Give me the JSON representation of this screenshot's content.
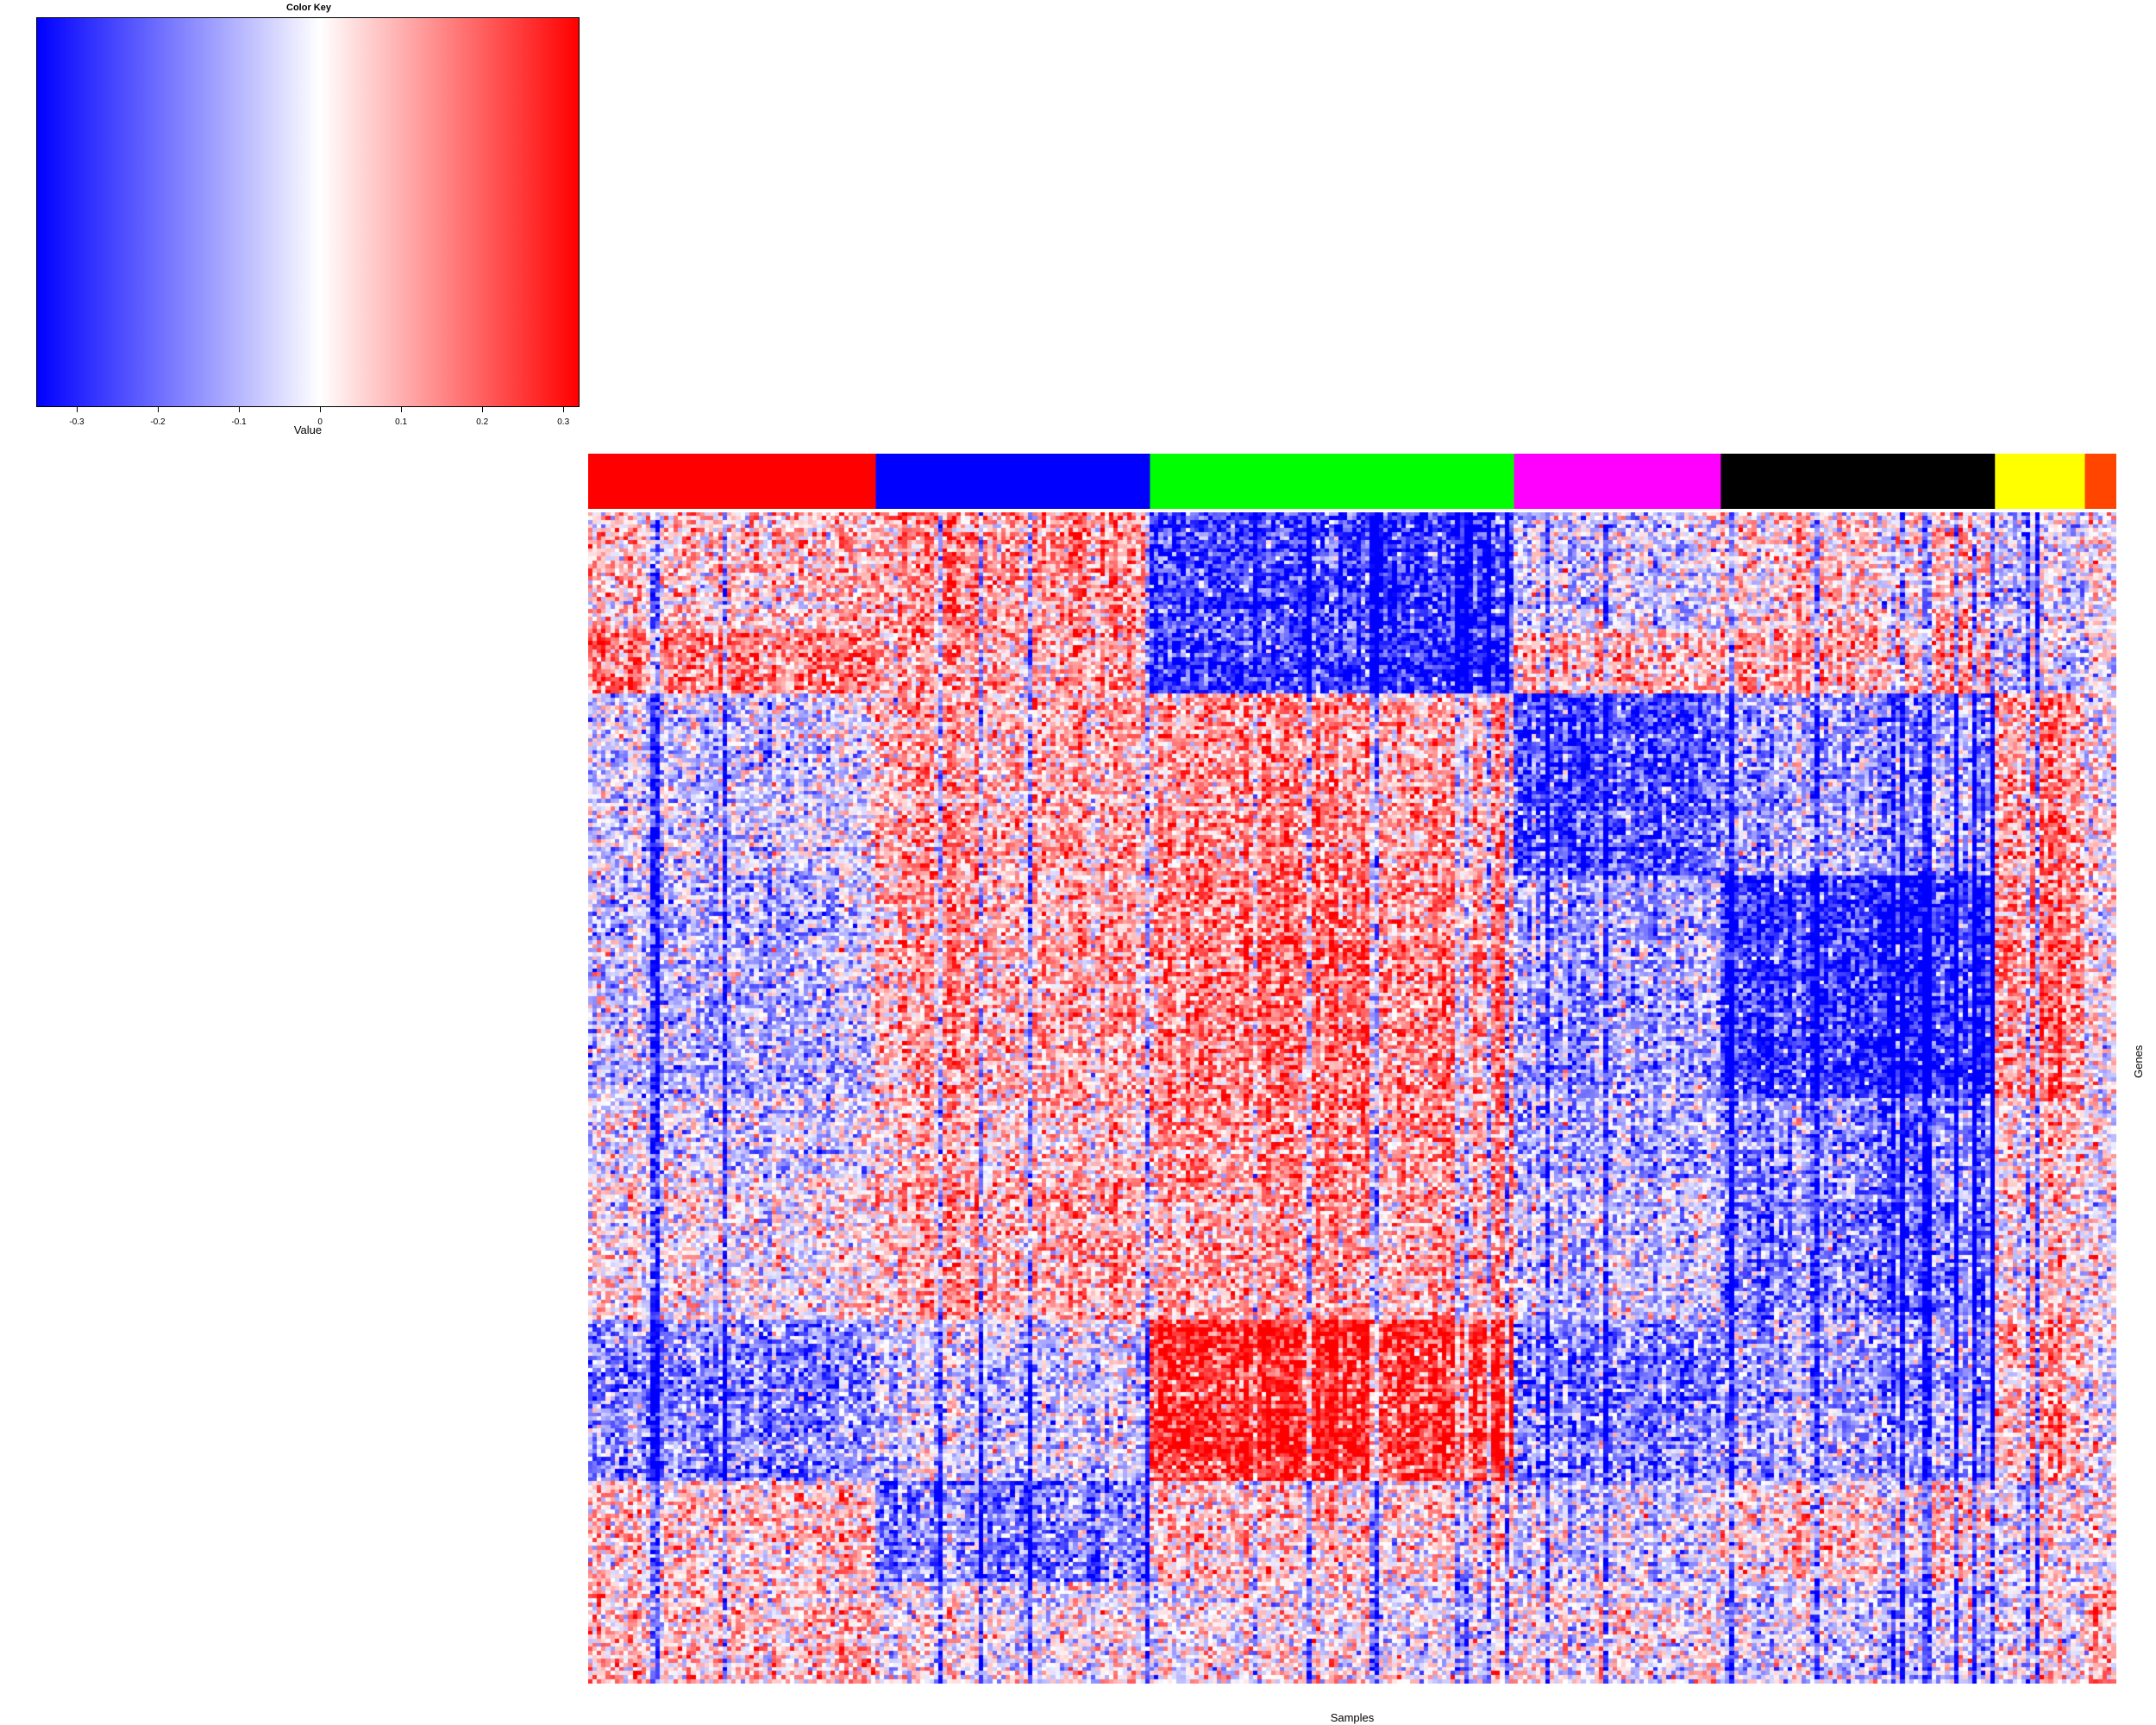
{
  "chart_data": {
    "type": "heatmap",
    "color_key": {
      "title": "Color Key",
      "xlabel": "Value",
      "range": [
        -0.35,
        0.32
      ],
      "ticks": [
        {
          "value": -0.3,
          "label": "-0.3"
        },
        {
          "value": -0.2,
          "label": "-0.2"
        },
        {
          "value": -0.1,
          "label": "-0.1"
        },
        {
          "value": 0,
          "label": "0"
        },
        {
          "value": 0.1,
          "label": "0.1"
        },
        {
          "value": 0.2,
          "label": "0.2"
        },
        {
          "value": 0.3,
          "label": "0.3"
        }
      ],
      "colors": {
        "low": "#0000ff",
        "mid": "#ffffff",
        "high": "#ff0000"
      }
    },
    "xlabel": "Samples",
    "ylabel": "Genes",
    "n_columns": 340,
    "n_rows": 290,
    "sample_groups": [
      {
        "color": "#ff0000",
        "count": 64
      },
      {
        "color": "#0000ff",
        "count": 61
      },
      {
        "color": "#00ff00",
        "count": 81
      },
      {
        "color": "#ff00ff",
        "count": 46
      },
      {
        "color": "#000000",
        "count": 61
      },
      {
        "color": "#ffff00",
        "count": 20
      },
      {
        "color": "#ff4500",
        "count": 7
      }
    ],
    "gene_blocks": [
      {
        "rows": 30,
        "group_means": [
          0.05,
          0.12,
          -0.25,
          -0.05,
          0.05,
          -0.05,
          0.0
        ]
      },
      {
        "rows": 15,
        "group_means": [
          0.15,
          0.1,
          -0.25,
          0.08,
          0.1,
          -0.05,
          0.0
        ]
      },
      {
        "rows": 45,
        "group_means": [
          -0.05,
          0.1,
          0.12,
          -0.22,
          -0.1,
          0.12,
          0.0
        ]
      },
      {
        "rows": 55,
        "group_means": [
          -0.08,
          0.1,
          0.15,
          -0.1,
          -0.25,
          0.15,
          0.0
        ]
      },
      {
        "rows": 20,
        "group_means": [
          -0.05,
          0.05,
          0.12,
          -0.1,
          -0.15,
          0.05,
          0.0
        ]
      },
      {
        "rows": 35,
        "group_means": [
          0.0,
          0.1,
          0.1,
          -0.05,
          -0.15,
          0.05,
          0.0
        ]
      },
      {
        "rows": 40,
        "group_means": [
          -0.15,
          -0.05,
          0.25,
          -0.15,
          -0.1,
          0.1,
          0.0
        ]
      },
      {
        "rows": 25,
        "group_means": [
          0.05,
          -0.15,
          0.05,
          -0.05,
          0.05,
          0.0,
          0.0
        ]
      },
      {
        "rows": 25,
        "group_means": [
          0.05,
          0.0,
          0.0,
          0.0,
          -0.05,
          0.0,
          0.1
        ]
      }
    ]
  }
}
